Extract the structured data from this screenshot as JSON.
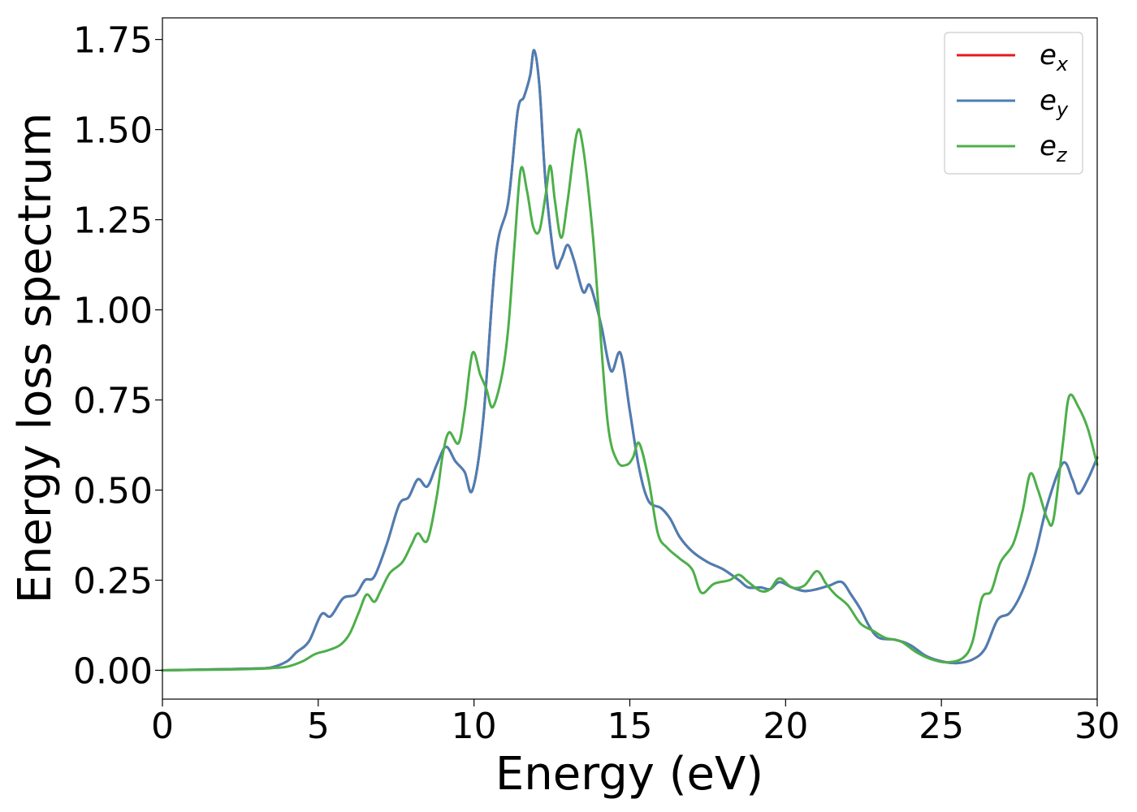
{
  "chart_data": {
    "type": "line",
    "title": "",
    "xlabel": "Energy (eV)",
    "ylabel": "Energy loss spectrum",
    "xlim": [
      0,
      30
    ],
    "ylim": [
      -0.08,
      1.81
    ],
    "xticks": [
      0,
      5,
      10,
      15,
      20,
      25,
      30
    ],
    "xtick_labels": [
      "0",
      "5",
      "10",
      "15",
      "20",
      "25",
      "30"
    ],
    "yticks": [
      0,
      0.25,
      0.5,
      0.75,
      1.0,
      1.25,
      1.5,
      1.75
    ],
    "ytick_labels": [
      "0.00",
      "0.25",
      "0.50",
      "0.75",
      "1.00",
      "1.25",
      "1.50",
      "1.75"
    ],
    "grid": false,
    "legend_position": "top-right",
    "series": [
      {
        "name": "ex",
        "label_base": "e",
        "label_sub": "x",
        "color": "#e41a1c",
        "points": [
          [
            0,
            0
          ],
          [
            2,
            0.003
          ],
          [
            3,
            0.005
          ],
          [
            3.5,
            0.008
          ],
          [
            4,
            0.025
          ],
          [
            4.3,
            0.05
          ],
          [
            4.7,
            0.08
          ],
          [
            5.1,
            0.155
          ],
          [
            5.4,
            0.15
          ],
          [
            5.8,
            0.2
          ],
          [
            6.2,
            0.21
          ],
          [
            6.5,
            0.25
          ],
          [
            6.8,
            0.26
          ],
          [
            7.2,
            0.35
          ],
          [
            7.6,
            0.46
          ],
          [
            7.9,
            0.48
          ],
          [
            8.2,
            0.53
          ],
          [
            8.5,
            0.51
          ],
          [
            8.8,
            0.57
          ],
          [
            9.1,
            0.62
          ],
          [
            9.4,
            0.58
          ],
          [
            9.7,
            0.55
          ],
          [
            9.95,
            0.5
          ],
          [
            10.3,
            0.7
          ],
          [
            10.7,
            1.15
          ],
          [
            11.1,
            1.3
          ],
          [
            11.4,
            1.55
          ],
          [
            11.6,
            1.59
          ],
          [
            11.8,
            1.65
          ],
          [
            11.93,
            1.72
          ],
          [
            12.1,
            1.62
          ],
          [
            12.3,
            1.35
          ],
          [
            12.6,
            1.13
          ],
          [
            12.8,
            1.14
          ],
          [
            13.0,
            1.18
          ],
          [
            13.2,
            1.14
          ],
          [
            13.5,
            1.05
          ],
          [
            13.7,
            1.07
          ],
          [
            13.9,
            1.02
          ],
          [
            14.1,
            0.95
          ],
          [
            14.4,
            0.83
          ],
          [
            14.7,
            0.88
          ],
          [
            15.0,
            0.72
          ],
          [
            15.3,
            0.56
          ],
          [
            15.6,
            0.47
          ],
          [
            16.0,
            0.45
          ],
          [
            16.3,
            0.42
          ],
          [
            16.6,
            0.37
          ],
          [
            17.0,
            0.33
          ],
          [
            17.5,
            0.3
          ],
          [
            18.0,
            0.28
          ],
          [
            18.5,
            0.25
          ],
          [
            18.8,
            0.23
          ],
          [
            19.2,
            0.23
          ],
          [
            19.5,
            0.225
          ],
          [
            19.8,
            0.245
          ],
          [
            20.2,
            0.23
          ],
          [
            20.6,
            0.22
          ],
          [
            21.0,
            0.225
          ],
          [
            21.4,
            0.235
          ],
          [
            21.8,
            0.245
          ],
          [
            22.1,
            0.21
          ],
          [
            22.4,
            0.17
          ],
          [
            22.7,
            0.12
          ],
          [
            23.0,
            0.09
          ],
          [
            23.5,
            0.085
          ],
          [
            24.0,
            0.07
          ],
          [
            24.5,
            0.04
          ],
          [
            25.0,
            0.025
          ],
          [
            25.5,
            0.02
          ],
          [
            26.0,
            0.03
          ],
          [
            26.4,
            0.06
          ],
          [
            26.8,
            0.14
          ],
          [
            27.2,
            0.16
          ],
          [
            27.6,
            0.22
          ],
          [
            28.0,
            0.32
          ],
          [
            28.4,
            0.46
          ],
          [
            28.9,
            0.575
          ],
          [
            29.2,
            0.53
          ],
          [
            29.4,
            0.49
          ],
          [
            29.7,
            0.53
          ],
          [
            30.0,
            0.59
          ]
        ]
      },
      {
        "name": "ey",
        "label_base": "e",
        "label_sub": "y",
        "color": "#4a7fb5",
        "points": [
          [
            0,
            0
          ],
          [
            2,
            0.003
          ],
          [
            3,
            0.005
          ],
          [
            3.5,
            0.008
          ],
          [
            4,
            0.025
          ],
          [
            4.3,
            0.05
          ],
          [
            4.7,
            0.08
          ],
          [
            5.1,
            0.155
          ],
          [
            5.4,
            0.15
          ],
          [
            5.8,
            0.2
          ],
          [
            6.2,
            0.21
          ],
          [
            6.5,
            0.25
          ],
          [
            6.8,
            0.26
          ],
          [
            7.2,
            0.35
          ],
          [
            7.6,
            0.46
          ],
          [
            7.9,
            0.48
          ],
          [
            8.2,
            0.53
          ],
          [
            8.5,
            0.51
          ],
          [
            8.8,
            0.57
          ],
          [
            9.1,
            0.62
          ],
          [
            9.4,
            0.58
          ],
          [
            9.7,
            0.55
          ],
          [
            9.95,
            0.5
          ],
          [
            10.3,
            0.7
          ],
          [
            10.7,
            1.15
          ],
          [
            11.1,
            1.3
          ],
          [
            11.4,
            1.55
          ],
          [
            11.6,
            1.59
          ],
          [
            11.8,
            1.65
          ],
          [
            11.93,
            1.72
          ],
          [
            12.1,
            1.62
          ],
          [
            12.3,
            1.35
          ],
          [
            12.6,
            1.13
          ],
          [
            12.8,
            1.14
          ],
          [
            13.0,
            1.18
          ],
          [
            13.2,
            1.14
          ],
          [
            13.5,
            1.05
          ],
          [
            13.7,
            1.07
          ],
          [
            13.9,
            1.02
          ],
          [
            14.1,
            0.95
          ],
          [
            14.4,
            0.83
          ],
          [
            14.7,
            0.88
          ],
          [
            15.0,
            0.72
          ],
          [
            15.3,
            0.56
          ],
          [
            15.6,
            0.47
          ],
          [
            16.0,
            0.45
          ],
          [
            16.3,
            0.42
          ],
          [
            16.6,
            0.37
          ],
          [
            17.0,
            0.33
          ],
          [
            17.5,
            0.3
          ],
          [
            18.0,
            0.28
          ],
          [
            18.5,
            0.25
          ],
          [
            18.8,
            0.23
          ],
          [
            19.2,
            0.23
          ],
          [
            19.5,
            0.225
          ],
          [
            19.8,
            0.245
          ],
          [
            20.2,
            0.23
          ],
          [
            20.6,
            0.22
          ],
          [
            21.0,
            0.225
          ],
          [
            21.4,
            0.235
          ],
          [
            21.8,
            0.245
          ],
          [
            22.1,
            0.21
          ],
          [
            22.4,
            0.17
          ],
          [
            22.7,
            0.12
          ],
          [
            23.0,
            0.09
          ],
          [
            23.5,
            0.085
          ],
          [
            24.0,
            0.07
          ],
          [
            24.5,
            0.04
          ],
          [
            25.0,
            0.025
          ],
          [
            25.5,
            0.02
          ],
          [
            26.0,
            0.03
          ],
          [
            26.4,
            0.06
          ],
          [
            26.8,
            0.14
          ],
          [
            27.2,
            0.16
          ],
          [
            27.6,
            0.22
          ],
          [
            28.0,
            0.32
          ],
          [
            28.4,
            0.46
          ],
          [
            28.9,
            0.575
          ],
          [
            29.2,
            0.53
          ],
          [
            29.4,
            0.49
          ],
          [
            29.7,
            0.53
          ],
          [
            30.0,
            0.59
          ]
        ]
      },
      {
        "name": "ez",
        "label_base": "e",
        "label_sub": "z",
        "color": "#4daf4a",
        "points": [
          [
            0,
            0
          ],
          [
            2,
            0.002
          ],
          [
            3,
            0.004
          ],
          [
            3.5,
            0.006
          ],
          [
            4,
            0.01
          ],
          [
            4.5,
            0.025
          ],
          [
            4.9,
            0.045
          ],
          [
            5.3,
            0.055
          ],
          [
            5.7,
            0.07
          ],
          [
            6.0,
            0.1
          ],
          [
            6.3,
            0.16
          ],
          [
            6.55,
            0.21
          ],
          [
            6.8,
            0.19
          ],
          [
            7.0,
            0.22
          ],
          [
            7.3,
            0.27
          ],
          [
            7.7,
            0.3
          ],
          [
            8.0,
            0.35
          ],
          [
            8.2,
            0.38
          ],
          [
            8.5,
            0.36
          ],
          [
            8.8,
            0.48
          ],
          [
            9.0,
            0.6
          ],
          [
            9.2,
            0.66
          ],
          [
            9.5,
            0.63
          ],
          [
            9.7,
            0.72
          ],
          [
            9.95,
            0.88
          ],
          [
            10.2,
            0.82
          ],
          [
            10.4,
            0.78
          ],
          [
            10.6,
            0.73
          ],
          [
            10.9,
            0.82
          ],
          [
            11.1,
            0.95
          ],
          [
            11.3,
            1.18
          ],
          [
            11.5,
            1.39
          ],
          [
            11.7,
            1.33
          ],
          [
            11.9,
            1.23
          ],
          [
            12.1,
            1.22
          ],
          [
            12.3,
            1.32
          ],
          [
            12.45,
            1.4
          ],
          [
            12.6,
            1.3
          ],
          [
            12.8,
            1.2
          ],
          [
            13.0,
            1.3
          ],
          [
            13.3,
            1.49
          ],
          [
            13.5,
            1.45
          ],
          [
            13.8,
            1.22
          ],
          [
            14.0,
            1.0
          ],
          [
            14.3,
            0.68
          ],
          [
            14.6,
            0.58
          ],
          [
            14.9,
            0.57
          ],
          [
            15.1,
            0.59
          ],
          [
            15.3,
            0.63
          ],
          [
            15.6,
            0.53
          ],
          [
            15.9,
            0.38
          ],
          [
            16.2,
            0.34
          ],
          [
            16.6,
            0.31
          ],
          [
            17.0,
            0.28
          ],
          [
            17.3,
            0.215
          ],
          [
            17.7,
            0.24
          ],
          [
            18.2,
            0.25
          ],
          [
            18.5,
            0.265
          ],
          [
            18.8,
            0.245
          ],
          [
            19.2,
            0.22
          ],
          [
            19.5,
            0.225
          ],
          [
            19.8,
            0.255
          ],
          [
            20.2,
            0.23
          ],
          [
            20.6,
            0.235
          ],
          [
            21.0,
            0.275
          ],
          [
            21.3,
            0.24
          ],
          [
            21.6,
            0.21
          ],
          [
            22.0,
            0.18
          ],
          [
            22.4,
            0.13
          ],
          [
            22.8,
            0.11
          ],
          [
            23.2,
            0.09
          ],
          [
            23.7,
            0.08
          ],
          [
            24.2,
            0.05
          ],
          [
            24.7,
            0.03
          ],
          [
            25.2,
            0.022
          ],
          [
            25.7,
            0.035
          ],
          [
            26.0,
            0.08
          ],
          [
            26.3,
            0.2
          ],
          [
            26.6,
            0.22
          ],
          [
            26.9,
            0.3
          ],
          [
            27.3,
            0.35
          ],
          [
            27.6,
            0.44
          ],
          [
            27.85,
            0.545
          ],
          [
            28.1,
            0.5
          ],
          [
            28.4,
            0.42
          ],
          [
            28.6,
            0.42
          ],
          [
            28.9,
            0.63
          ],
          [
            29.1,
            0.76
          ],
          [
            29.4,
            0.73
          ],
          [
            29.7,
            0.67
          ],
          [
            30.0,
            0.57
          ]
        ]
      }
    ]
  }
}
